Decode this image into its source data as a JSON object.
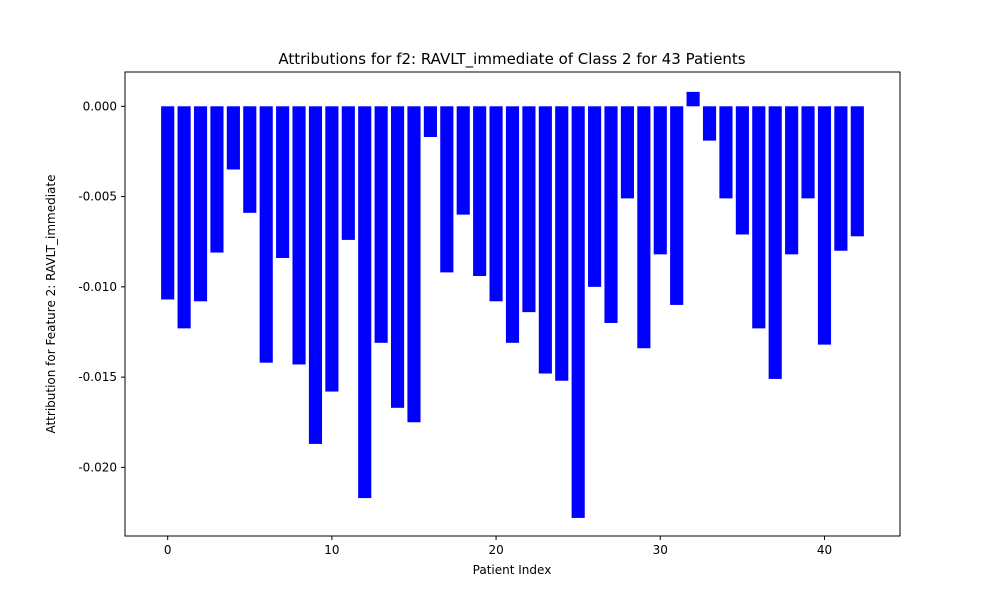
{
  "chart_data": {
    "type": "bar",
    "title": "Attributions for f2: RAVLT_immediate of Class 2 for 43 Patients",
    "xlabel": "Patient Index",
    "ylabel": "Attribution for Feature 2: RAVLT_immediate",
    "bar_color": "#0000ff",
    "xlim": [
      -2.6,
      44.6
    ],
    "ylim": [
      -0.0238,
      0.0019
    ],
    "xticks": [
      0,
      10,
      20,
      30,
      40
    ],
    "yticks": [
      0.0,
      -0.005,
      -0.01,
      -0.015,
      -0.02
    ],
    "ytick_labels": [
      "0.000",
      "-0.005",
      "-0.010",
      "-0.015",
      "-0.020"
    ],
    "grid": false,
    "legend": "none",
    "categories": [
      0,
      1,
      2,
      3,
      4,
      5,
      6,
      7,
      8,
      9,
      10,
      11,
      12,
      13,
      14,
      15,
      16,
      17,
      18,
      19,
      20,
      21,
      22,
      23,
      24,
      25,
      26,
      27,
      28,
      29,
      30,
      31,
      32,
      33,
      34,
      35,
      36,
      37,
      38,
      39,
      40,
      41,
      42
    ],
    "values": [
      -0.0107,
      -0.0123,
      -0.0108,
      -0.0081,
      -0.0035,
      -0.0059,
      -0.0142,
      -0.0084,
      -0.0143,
      -0.0187,
      -0.0158,
      -0.0074,
      -0.0217,
      -0.0131,
      -0.0167,
      -0.0175,
      -0.0017,
      -0.0092,
      -0.006,
      -0.0094,
      -0.0108,
      -0.0131,
      -0.0114,
      -0.0148,
      -0.0152,
      -0.0228,
      -0.01,
      -0.012,
      -0.0051,
      -0.0134,
      -0.0082,
      -0.011,
      0.0008,
      -0.0019,
      -0.0051,
      -0.0071,
      -0.0123,
      -0.0151,
      -0.0082,
      -0.0051,
      -0.0132,
      -0.008,
      -0.0072
    ]
  }
}
